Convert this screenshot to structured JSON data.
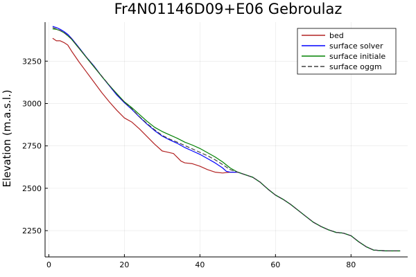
{
  "chart_data": {
    "type": "line",
    "title": "Fr4N01146D09+E06 Gebroulaz",
    "xlabel": "",
    "ylabel": "Elevation (m.a.s.l.)",
    "xlim": [
      -1,
      95
    ],
    "ylim": [
      2095,
      3480
    ],
    "xticks": [
      0,
      20,
      40,
      60,
      80
    ],
    "yticks": [
      2250,
      2500,
      2750,
      3000,
      3250
    ],
    "grid": true,
    "legend_position": "top-right",
    "series": [
      {
        "name": "bed",
        "color": "#b22222",
        "dash": "solid",
        "x": [
          1,
          2,
          3,
          4,
          5,
          6,
          8,
          10,
          12,
          14,
          16,
          18,
          20,
          22,
          24,
          26,
          28,
          30,
          31,
          33,
          35,
          36,
          38,
          40,
          42,
          44,
          46,
          48,
          50,
          52,
          54,
          56,
          58,
          60,
          62,
          64,
          66,
          68,
          70,
          72,
          74,
          76,
          78,
          80,
          82,
          84,
          86,
          88,
          90,
          92,
          93
        ],
        "y": [
          3385,
          3370,
          3370,
          3360,
          3345,
          3310,
          3245,
          3185,
          3125,
          3065,
          3010,
          2960,
          2915,
          2890,
          2850,
          2805,
          2760,
          2720,
          2715,
          2705,
          2660,
          2650,
          2645,
          2630,
          2610,
          2595,
          2590,
          2595,
          2595,
          2580,
          2565,
          2535,
          2495,
          2460,
          2435,
          2405,
          2370,
          2335,
          2300,
          2275,
          2255,
          2240,
          2235,
          2220,
          2185,
          2155,
          2135,
          2132,
          2130,
          2130,
          2130
        ]
      },
      {
        "name": "surface solver",
        "color": "#0000ff",
        "dash": "solid",
        "x": [
          1,
          2,
          3,
          4,
          5,
          6,
          8,
          10,
          12,
          14,
          16,
          18,
          20,
          22,
          24,
          26,
          28,
          30,
          32,
          34,
          36,
          38,
          40,
          42,
          44,
          46,
          47,
          48,
          50,
          52,
          54,
          56,
          58,
          60,
          62,
          64,
          66,
          68,
          70,
          72,
          74,
          76,
          78,
          80,
          82,
          84,
          86,
          88,
          90,
          92,
          93
        ],
        "y": [
          3455,
          3448,
          3438,
          3425,
          3408,
          3385,
          3330,
          3272,
          3220,
          3160,
          3105,
          3050,
          3005,
          2965,
          2920,
          2878,
          2840,
          2808,
          2785,
          2765,
          2740,
          2720,
          2700,
          2675,
          2650,
          2620,
          2600,
          2595,
          2595,
          2580,
          2565,
          2535,
          2495,
          2460,
          2435,
          2405,
          2370,
          2335,
          2300,
          2275,
          2255,
          2240,
          2235,
          2220,
          2185,
          2155,
          2135,
          2132,
          2130,
          2130,
          2130
        ]
      },
      {
        "name": "surface initiale",
        "color": "#008000",
        "dash": "solid",
        "x": [
          1,
          2,
          3,
          4,
          5,
          6,
          8,
          10,
          12,
          14,
          16,
          18,
          20,
          22,
          24,
          26,
          28,
          30,
          32,
          34,
          36,
          38,
          40,
          42,
          44,
          46,
          48,
          50,
          52,
          54,
          56,
          58,
          60,
          62,
          64,
          66,
          68,
          70,
          72,
          74,
          76,
          78,
          80,
          82,
          84,
          86,
          88,
          90,
          92,
          93
        ],
        "y": [
          3440,
          3438,
          3430,
          3418,
          3400,
          3380,
          3325,
          3270,
          3215,
          3160,
          3108,
          3058,
          3010,
          2975,
          2935,
          2895,
          2860,
          2835,
          2815,
          2795,
          2772,
          2755,
          2735,
          2710,
          2685,
          2655,
          2620,
          2595,
          2580,
          2565,
          2535,
          2495,
          2460,
          2435,
          2405,
          2370,
          2335,
          2300,
          2275,
          2255,
          2240,
          2235,
          2220,
          2185,
          2155,
          2135,
          2132,
          2130,
          2130,
          2130
        ]
      },
      {
        "name": "surface oggm",
        "color": "#404040",
        "dash": "dashed",
        "x": [
          1,
          2,
          3,
          4,
          5,
          6,
          8,
          10,
          12,
          14,
          16,
          18,
          20,
          22,
          24,
          26,
          28,
          30,
          32,
          34,
          36,
          38,
          40,
          42,
          44,
          46,
          48,
          50,
          52,
          54,
          56,
          58,
          60,
          62,
          64,
          66,
          68,
          70,
          72,
          74,
          76,
          78,
          80,
          82,
          84,
          86,
          88,
          90,
          92,
          93
        ],
        "y": [
          3448,
          3440,
          3430,
          3418,
          3402,
          3382,
          3328,
          3272,
          3218,
          3162,
          3108,
          3055,
          3008,
          2968,
          2922,
          2882,
          2845,
          2812,
          2790,
          2772,
          2752,
          2732,
          2712,
          2692,
          2668,
          2640,
          2610,
          2595,
          2580,
          2565,
          2535,
          2495,
          2460,
          2435,
          2405,
          2370,
          2335,
          2300,
          2275,
          2255,
          2240,
          2235,
          2220,
          2185,
          2155,
          2135,
          2132,
          2130,
          2130,
          2130
        ]
      }
    ]
  }
}
